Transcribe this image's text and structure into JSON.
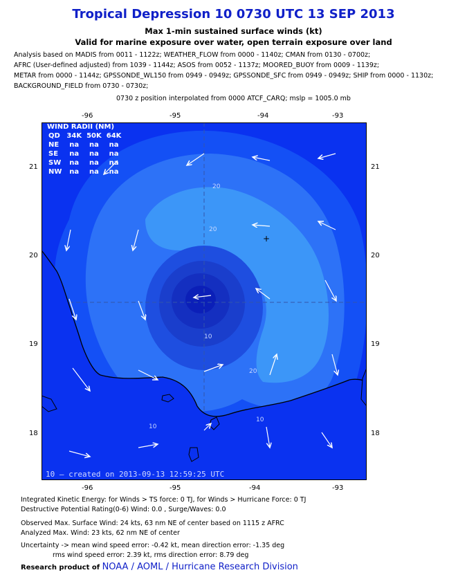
{
  "header": {
    "title": "Tropical Depression 10 0730 UTC 13 SEP 2013",
    "subtitle1": "Max 1-min sustained surface winds (kt)",
    "subtitle2": "Valid for marine exposure over water, open terrain exposure over land"
  },
  "analysis_lines": [
    "Analysis based on MADIS from 0011 - 1122z; WEATHER_FLOW from 0000 - 1140z; CMAN from 0130 - 0700z;",
    "AFRC (User-defined adjusted) from 1039 - 1144z; ASOS from 0052 - 1137z; MOORED_BUOY from 0009 - 1139z;",
    "METAR from 0000 - 1144z; GPSSONDE_WL150 from 0949 - 0949z; GPSSONDE_SFC from 0949 - 0949z; SHIP from 0000 - 1130z;",
    "BACKGROUND_FIELD from 0730 - 0730z;"
  ],
  "position_line": "0730 z position interpolated from 0000 ATCF_CARQ; mslp = 1005.0 mb",
  "map": {
    "lon_ticks": [
      "-96",
      "-95",
      "-94",
      "-93"
    ],
    "lat_ticks": [
      "21",
      "20",
      "19",
      "18"
    ],
    "contour_labels": [
      "20",
      "20",
      "10",
      "20",
      "10",
      "10"
    ],
    "center_marker": "+",
    "colors": {
      "outer": "#0a32f0",
      "level1": "#1450f5",
      "level2": "#2d72f7",
      "level3": "#3c96f8",
      "inner": "#1a3ecc",
      "core": "#0b1fb8",
      "land": "#0a32f0",
      "coast": "#000000"
    },
    "created_label": "10 — created on 2013-09-13 12:59:25 UTC"
  },
  "wind_radii": {
    "title": "WIND RADII (NM)",
    "headers": [
      "QD",
      "34K",
      "50K",
      "64K"
    ],
    "rows": [
      [
        "NE",
        "na",
        "na",
        "na"
      ],
      [
        "SE",
        "na",
        "na",
        "na"
      ],
      [
        "SW",
        "na",
        "na",
        "na"
      ],
      [
        "NW",
        "na",
        "na",
        "na"
      ]
    ]
  },
  "footer": {
    "line1": "Integrated Kinetic Energy: for Winds > TS force: 0 TJ, for Winds > Hurricane Force: 0 TJ",
    "line2": "Destructive Potential Rating(0-6)   Wind: 0.0 , Surge/Waves: 0.0",
    "line3": "Observed Max. Surface Wind: 24 kts, 63 nm NE of center based on 1115 z AFRC",
    "line4": "Analyzed Max. Wind: 23 kts, 62 nm  NE of center",
    "line5": "Uncertainty -> mean wind speed error:  -0.42 kt, mean direction error:  -1.35 deg",
    "line6": "rms wind speed error: 2.39 kt, rms direction error: 8.79 deg",
    "credit_prefix": "Research product of",
    "credit_link": "NOAA  /  AOML  /  Hurricane Research Division"
  }
}
